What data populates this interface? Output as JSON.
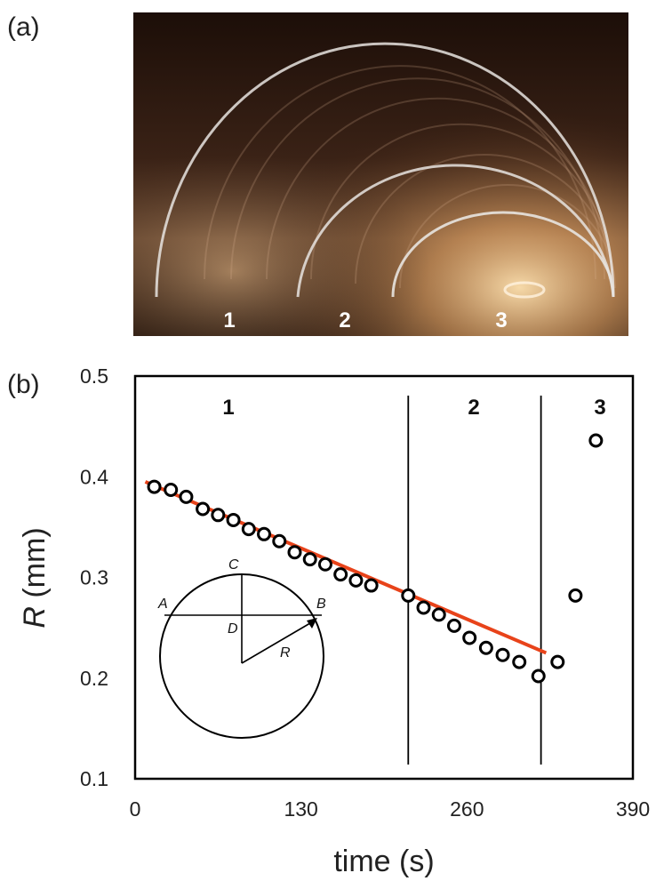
{
  "panels": {
    "a": "(a)",
    "b": "(b)"
  },
  "photo": {
    "region_labels": [
      "1",
      "2",
      "3"
    ],
    "colors": {
      "background_dark": "#2a1810",
      "glow": "#f0b070",
      "arc": "#e8e4e0"
    }
  },
  "chart_data": {
    "type": "scatter",
    "xlabel": "time (s)",
    "ylabel_symbol": "R",
    "ylabel_unit": " (mm)",
    "xlim": [
      0,
      390
    ],
    "ylim": [
      0.1,
      0.5
    ],
    "xticks": [
      "0",
      "130",
      "260",
      "390"
    ],
    "yticks": [
      "0.1",
      "0.2",
      "0.3",
      "0.4",
      "0.5"
    ],
    "region_labels": [
      "1",
      "2",
      "3"
    ],
    "region_boundaries": [
      214,
      318
    ],
    "series": [
      {
        "marker": "open-circle",
        "points": [
          [
            15,
            0.39
          ],
          [
            28,
            0.387
          ],
          [
            40,
            0.38
          ],
          [
            53,
            0.368
          ],
          [
            65,
            0.362
          ],
          [
            77,
            0.357
          ],
          [
            89,
            0.348
          ],
          [
            101,
            0.343
          ],
          [
            113,
            0.336
          ],
          [
            125,
            0.325
          ],
          [
            137,
            0.318
          ],
          [
            149,
            0.313
          ],
          [
            161,
            0.303
          ],
          [
            173,
            0.297
          ],
          [
            185,
            0.292
          ],
          [
            214,
            0.282
          ],
          [
            226,
            0.27
          ],
          [
            238,
            0.263
          ],
          [
            250,
            0.252
          ],
          [
            262,
            0.24
          ],
          [
            275,
            0.23
          ],
          [
            288,
            0.223
          ],
          [
            301,
            0.216
          ],
          [
            316,
            0.202
          ],
          [
            331,
            0.216
          ],
          [
            345,
            0.282
          ],
          [
            361,
            0.436
          ]
        ]
      }
    ],
    "fit_line": {
      "x": [
        8,
        322
      ],
      "y": [
        0.395,
        0.225
      ],
      "color": "#e8431a"
    },
    "inset": {
      "labels": [
        "A",
        "B",
        "C",
        "D",
        "R"
      ]
    }
  }
}
